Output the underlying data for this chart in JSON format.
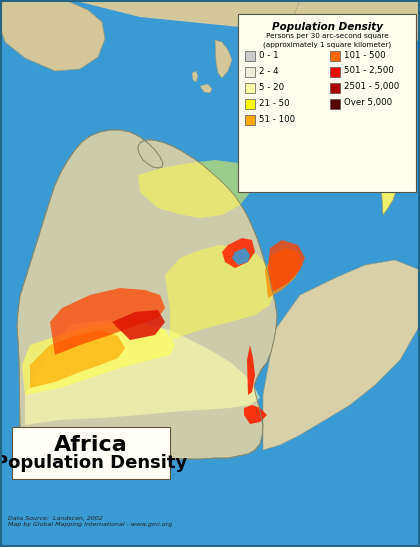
{
  "legend_title": "Population Density",
  "legend_subtitle1": "Persons per 30 arc-second square",
  "legend_subtitle2": "(approximately 1 square kilometer)",
  "legend_items_left": [
    {
      "label": "0 - 1",
      "color": "#cccccc"
    },
    {
      "label": "2 - 4",
      "color": "#f0eed8"
    },
    {
      "label": "5 - 20",
      "color": "#ffffaa"
    },
    {
      "label": "21 - 50",
      "color": "#ffff00"
    },
    {
      "label": "51 - 100",
      "color": "#ffaa00"
    }
  ],
  "legend_items_right": [
    {
      "label": "101 - 500",
      "color": "#ff6600"
    },
    {
      "label": "501 - 2,500",
      "color": "#ff0000"
    },
    {
      "label": "2501 - 5,000",
      "color": "#aa0000"
    },
    {
      "label": "Over 5,000",
      "color": "#550000"
    }
  ],
  "bg_color": "#3a9ad4",
  "land_color": "#ccccaa",
  "legend_bg": "#fffff0",
  "title_box_bg": "#fffff8",
  "source_text": "Data Source:  Landscan, 2002\nMap by Global Mapping International - www.gmi.org",
  "fig_width": 4.2,
  "fig_height": 5.47,
  "dpi": 100
}
